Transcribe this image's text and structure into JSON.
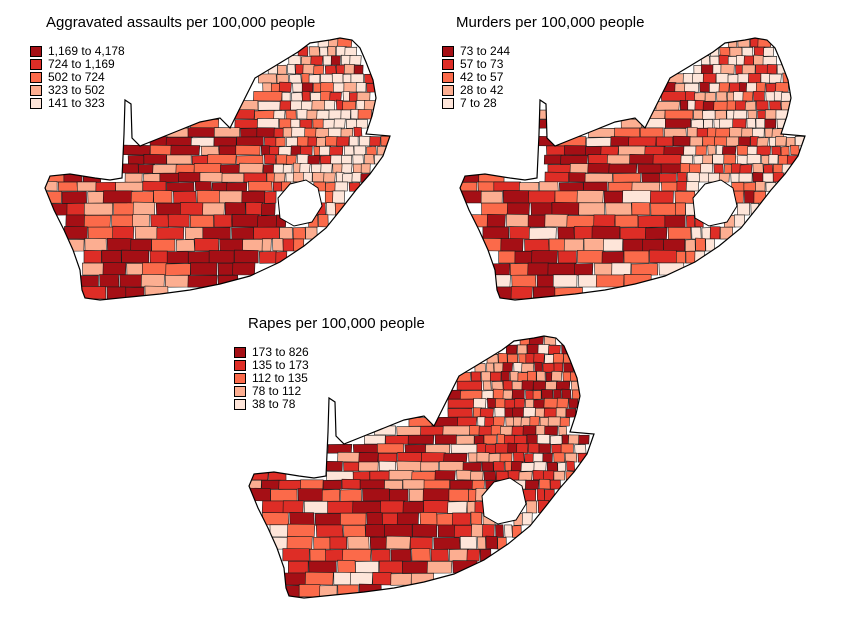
{
  "palette": [
    "#a50f15",
    "#de2d26",
    "#fb6a4a",
    "#fcae91",
    "#fee5d9"
  ],
  "maps": [
    {
      "id": "assaults",
      "title": "Aggravated assaults per 100,000 people",
      "legend": [
        {
          "label": "1,169 to 4,178",
          "color": "#a50f15"
        },
        {
          "label": "724 to 1,169",
          "color": "#de2d26"
        },
        {
          "label": "502 to 724",
          "color": "#fb6a4a"
        },
        {
          "label": "323 to 502",
          "color": "#fcae91"
        },
        {
          "label": "141 to 323",
          "color": "#fee5d9"
        }
      ]
    },
    {
      "id": "murders",
      "title": "Murders per 100,000 people",
      "legend": [
        {
          "label": "73 to 244",
          "color": "#a50f15"
        },
        {
          "label": "57 to 73",
          "color": "#de2d26"
        },
        {
          "label": "42 to 57",
          "color": "#fb6a4a"
        },
        {
          "label": "28 to 42",
          "color": "#fcae91"
        },
        {
          "label": "7 to 28",
          "color": "#fee5d9"
        }
      ]
    },
    {
      "id": "rapes",
      "title": "Rapes per 100,000 people",
      "legend": [
        {
          "label": "173 to 826",
          "color": "#a50f15"
        },
        {
          "label": "135 to 173",
          "color": "#de2d26"
        },
        {
          "label": "112 to 135",
          "color": "#fb6a4a"
        },
        {
          "label": "78 to 112",
          "color": "#fcae91"
        },
        {
          "label": "38 to 78",
          "color": "#fee5d9"
        }
      ]
    }
  ]
}
